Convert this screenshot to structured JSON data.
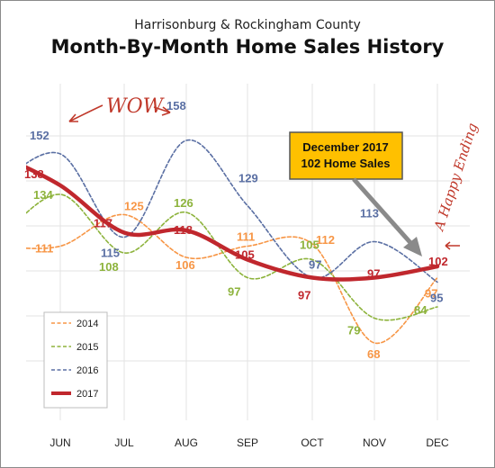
{
  "chart_data": {
    "type": "line",
    "subtitle": "Harrisonburg & Rockingham County",
    "title": "Month-By-Month Home Sales History",
    "categories": [
      "JUN",
      "JUL",
      "AUG",
      "SEP",
      "OCT",
      "NOV",
      "DEC"
    ],
    "ylim": [
      40,
      180
    ],
    "grid": true,
    "legend_position": "bottom-left",
    "series": [
      {
        "name": "2014",
        "color": "#f79646",
        "values": [
          111,
          125,
          106,
          111,
          112,
          68,
          97
        ]
      },
      {
        "name": "2015",
        "color": "#8db33c",
        "values": [
          134,
          108,
          126,
          97,
          105,
          79,
          84
        ]
      },
      {
        "name": "2016",
        "color": "#5a6fa3",
        "values": [
          152,
          115,
          158,
          129,
          97,
          113,
          95
        ]
      },
      {
        "name": "2017",
        "color": "#c0272d",
        "values": [
          138,
          117,
          118,
          105,
          97,
          97,
          102
        ]
      }
    ],
    "annotations": {
      "wow": "WOW",
      "callout_line1": "December 2017",
      "callout_line2": "102 Home Sales",
      "happy_ending": "A Happy Ending"
    }
  }
}
